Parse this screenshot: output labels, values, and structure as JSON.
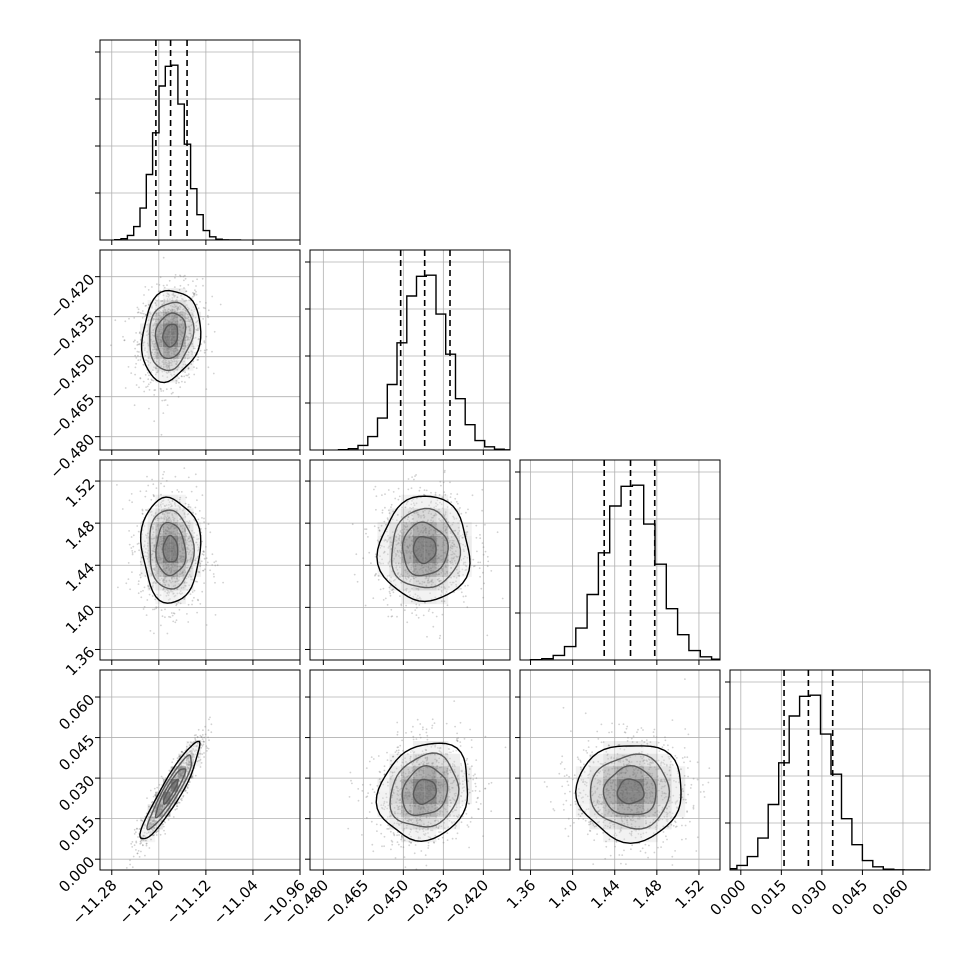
{
  "chart_data": {
    "type": "corner",
    "title": "",
    "grid": true,
    "colors": {
      "line": "#000000",
      "grid": "#b0b0b0",
      "points": "#7f7f7f",
      "density": "#000000"
    },
    "params": [
      {
        "range": [
          -11.3,
          -10.96
        ],
        "ticks": [
          -11.28,
          -11.2,
          -11.12,
          -11.04,
          -10.96
        ],
        "tick_labels": [
          "−11.28",
          "−11.20",
          "−11.12",
          "−11.04",
          "−10.96"
        ],
        "mean": -11.18,
        "sd": 0.025,
        "quantiles": [
          -11.205,
          -11.18,
          -11.152
        ]
      },
      {
        "range": [
          -0.485,
          -0.41
        ],
        "ticks": [
          -0.48,
          -0.465,
          -0.45,
          -0.435,
          -0.42
        ],
        "tick_labels": [
          "−0.480",
          "−0.465",
          "−0.450",
          "−0.435",
          "−0.420"
        ],
        "mean": -0.442,
        "sd": 0.0085,
        "quantiles": [
          -0.451,
          -0.442,
          -0.4325
        ]
      },
      {
        "range": [
          1.35,
          1.54
        ],
        "ticks": [
          1.36,
          1.4,
          1.44,
          1.48,
          1.52
        ],
        "tick_labels": [
          "1.36",
          "1.40",
          "1.44",
          "1.48",
          "1.52"
        ],
        "mean": 1.455,
        "sd": 0.025,
        "quantiles": [
          1.43,
          1.455,
          1.478
        ]
      },
      {
        "range": [
          -0.004,
          0.07
        ],
        "ticks": [
          0.0,
          0.015,
          0.03,
          0.045,
          0.06
        ],
        "tick_labels": [
          "0.000",
          "0.015",
          "0.030",
          "0.045",
          "0.060"
        ],
        "mean": 0.025,
        "sd": 0.009,
        "quantiles": [
          0.016,
          0.025,
          0.034
        ]
      }
    ],
    "correlations": [
      [
        1,
        0.15,
        -0.05,
        0.92
      ],
      [
        0.15,
        1,
        0.0,
        0.15
      ],
      [
        -0.05,
        0.0,
        1,
        0.0
      ],
      [
        0.92,
        0.15,
        0.0,
        1
      ]
    ],
    "hist_peak_fraction": 0.12,
    "contour_levels_sigma": [
      0.5,
      1.0,
      1.5,
      2.0
    ]
  }
}
